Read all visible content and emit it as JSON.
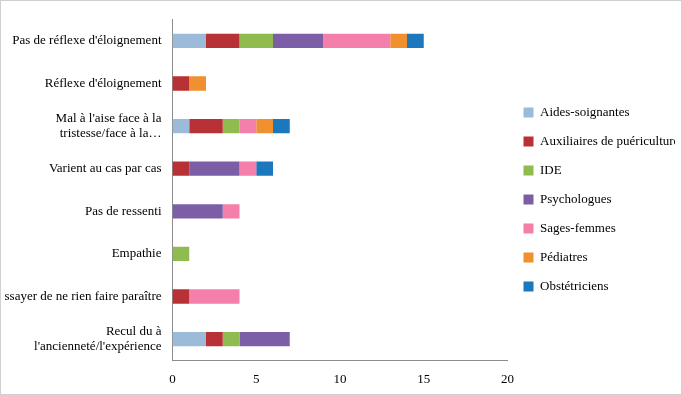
{
  "chart_data": {
    "type": "bar",
    "orientation": "horizontal",
    "stacked": true,
    "grid": false,
    "legend": "right",
    "categories": [
      "Pas de réflexe d'éloignement",
      "Réflexe d'éloignement",
      "Mal à l'aise face à la tristesse/face à la…",
      "Varient au cas par cas",
      "Pas de ressenti",
      "Empathie",
      "Essayer de ne rien faire paraître",
      "Recul du à l'ancienneté/l'expérience"
    ],
    "xlim": [
      0,
      20
    ],
    "xticks": [
      0,
      5,
      10,
      15,
      20
    ],
    "series": [
      {
        "name": "Aides-soignantes",
        "color": "#9bbbd9",
        "values": [
          2,
          0,
          1,
          0,
          0,
          0,
          0,
          2
        ]
      },
      {
        "name": "Auxiliaires de puériculture",
        "color": "#b83235",
        "values": [
          2,
          1,
          2,
          1,
          0,
          0,
          1,
          1
        ]
      },
      {
        "name": "IDE",
        "color": "#8fbb4f",
        "values": [
          2,
          0,
          1,
          0,
          0,
          1,
          0,
          1
        ]
      },
      {
        "name": "Psychologues",
        "color": "#7c5ea6",
        "values": [
          3,
          0,
          0,
          3,
          3,
          0,
          0,
          3
        ]
      },
      {
        "name": "Sages-femmes",
        "color": "#f47faa",
        "values": [
          4,
          0,
          1,
          1,
          1,
          0,
          3,
          0
        ]
      },
      {
        "name": "Pédiatres",
        "color": "#f0902f",
        "values": [
          1,
          1,
          1,
          0,
          0,
          0,
          0,
          0
        ]
      },
      {
        "name": "Obstétriciens",
        "color": "#1b78bd",
        "values": [
          1,
          0,
          1,
          1,
          0,
          0,
          0,
          0
        ]
      }
    ]
  }
}
